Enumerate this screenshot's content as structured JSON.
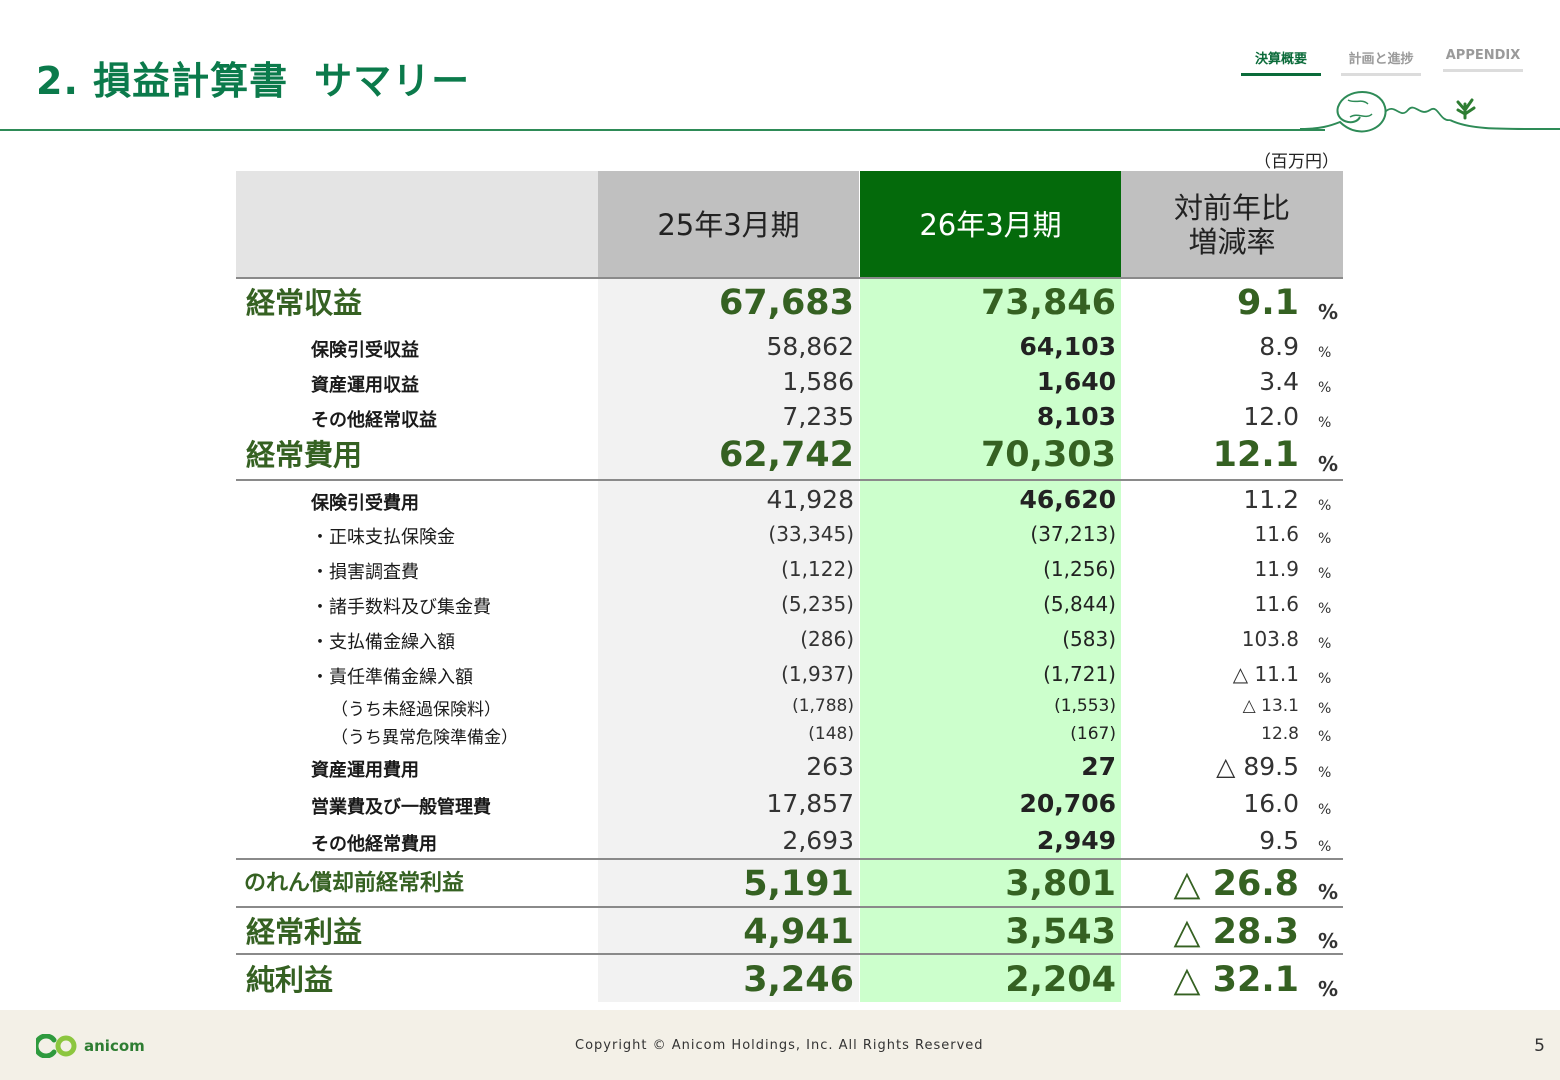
{
  "header": {
    "title": "2. 損益計算書",
    "subtitle": "サマリー",
    "nav": [
      "決算概要",
      "計画と進捗",
      "APPENDIX"
    ]
  },
  "unit": "（百万円）",
  "columns": {
    "prev": "25年3月期",
    "curr": "26年3月期",
    "rate": "対前年比\n増減率"
  },
  "rows": [
    {
      "label": "経常収益",
      "prev": "67,683",
      "curr": "73,846",
      "rate": "9.1",
      "pct": "%"
    },
    {
      "label": "保険引受収益",
      "prev": "58,862",
      "curr": "64,103",
      "rate": "8.9",
      "pct": "%"
    },
    {
      "label": "資産運用収益",
      "prev": "1,586",
      "curr": "1,640",
      "rate": "3.4",
      "pct": "%"
    },
    {
      "label": "その他経常収益",
      "prev": "7,235",
      "curr": "8,103",
      "rate": "12.0",
      "pct": "%"
    },
    {
      "label": "経常費用",
      "prev": "62,742",
      "curr": "70,303",
      "rate": "12.1",
      "pct": "%"
    },
    {
      "label": "保険引受費用",
      "prev": "41,928",
      "curr": "46,620",
      "rate": "11.2",
      "pct": "%"
    },
    {
      "label": "・正味支払保険金",
      "prev": "(33,345)",
      "curr": "(37,213)",
      "rate": "11.6",
      "pct": "%"
    },
    {
      "label": "・損害調査費",
      "prev": "(1,122)",
      "curr": "(1,256)",
      "rate": "11.9",
      "pct": "%"
    },
    {
      "label": "・諸手数料及び集金費",
      "prev": "(5,235)",
      "curr": "(5,844)",
      "rate": "11.6",
      "pct": "%"
    },
    {
      "label": "・支払備金繰入額",
      "prev": "(286)",
      "curr": "(583)",
      "rate": "103.8",
      "pct": "%"
    },
    {
      "label": "・責任準備金繰入額",
      "prev": "(1,937)",
      "curr": "(1,721)",
      "rate": "△ 11.1",
      "pct": "%"
    },
    {
      "label": "（うち未経過保険料）",
      "prev": "(1,788)",
      "curr": "(1,553)",
      "rate": "△ 13.1",
      "pct": "%"
    },
    {
      "label": "（うち異常危険準備金）",
      "prev": "(148)",
      "curr": "(167)",
      "rate": "12.8",
      "pct": "%"
    },
    {
      "label": "資産運用費用",
      "prev": "263",
      "curr": "27",
      "rate": "△ 89.5",
      "pct": "%"
    },
    {
      "label": "営業費及び一般管理費",
      "prev": "17,857",
      "curr": "20,706",
      "rate": "16.0",
      "pct": "%"
    },
    {
      "label": "その他経常費用",
      "prev": "2,693",
      "curr": "2,949",
      "rate": "9.5",
      "pct": "%"
    },
    {
      "label": "のれん償却前経常利益",
      "prev": "5,191",
      "curr": "3,801",
      "rate": "△ 26.8",
      "pct": "%"
    },
    {
      "label": "経常利益",
      "prev": "4,941",
      "curr": "3,543",
      "rate": "△ 28.3",
      "pct": "%"
    },
    {
      "label": "純利益",
      "prev": "3,246",
      "curr": "2,204",
      "rate": "△ 32.1",
      "pct": "%"
    }
  ],
  "footer": {
    "logo_text": "anicom",
    "copyright": "Copyright © Anicom Holdings, Inc. All Rights Reserved",
    "page_number": "5"
  },
  "colors": {
    "brand": "#0b7a4b",
    "current_header": "#046a0b",
    "current_column": "#ccffcc",
    "prev_header": "#c0c0c0",
    "prev_column": "#f2f2f2",
    "value_green": "#356122"
  }
}
